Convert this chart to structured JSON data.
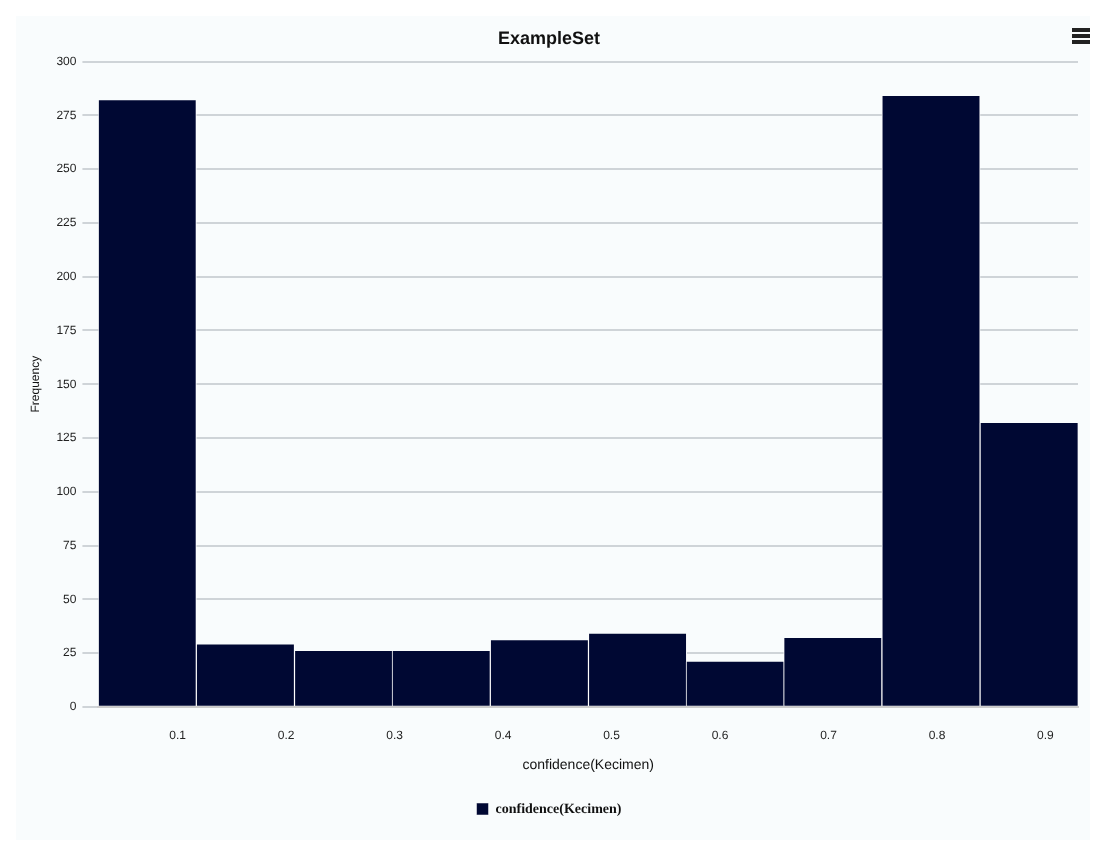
{
  "chart_data": {
    "type": "histogram",
    "title": "ExampleSet",
    "xlabel": "confidence(Kecimen)",
    "ylabel": "Frequency",
    "bins": [
      0.027,
      0.117,
      0.208,
      0.298,
      0.388,
      0.479,
      0.569,
      0.659,
      0.749,
      0.84,
      0.93
    ],
    "series": [
      {
        "name": "confidence(Kecimen)",
        "color": "#000833",
        "values": [
          282,
          29,
          26,
          26,
          31,
          34,
          21,
          32,
          284,
          132
        ]
      }
    ],
    "xlim": [
      0.027,
      0.93
    ],
    "xticks": [
      0.1,
      0.2,
      0.3,
      0.4,
      0.5,
      0.6,
      0.7,
      0.8,
      0.9
    ],
    "ylim": [
      0,
      300
    ],
    "yticks": [
      0,
      25,
      50,
      75,
      100,
      125,
      150,
      175,
      200,
      225,
      250,
      275,
      300
    ],
    "grid": "y",
    "legend": "bottom"
  }
}
